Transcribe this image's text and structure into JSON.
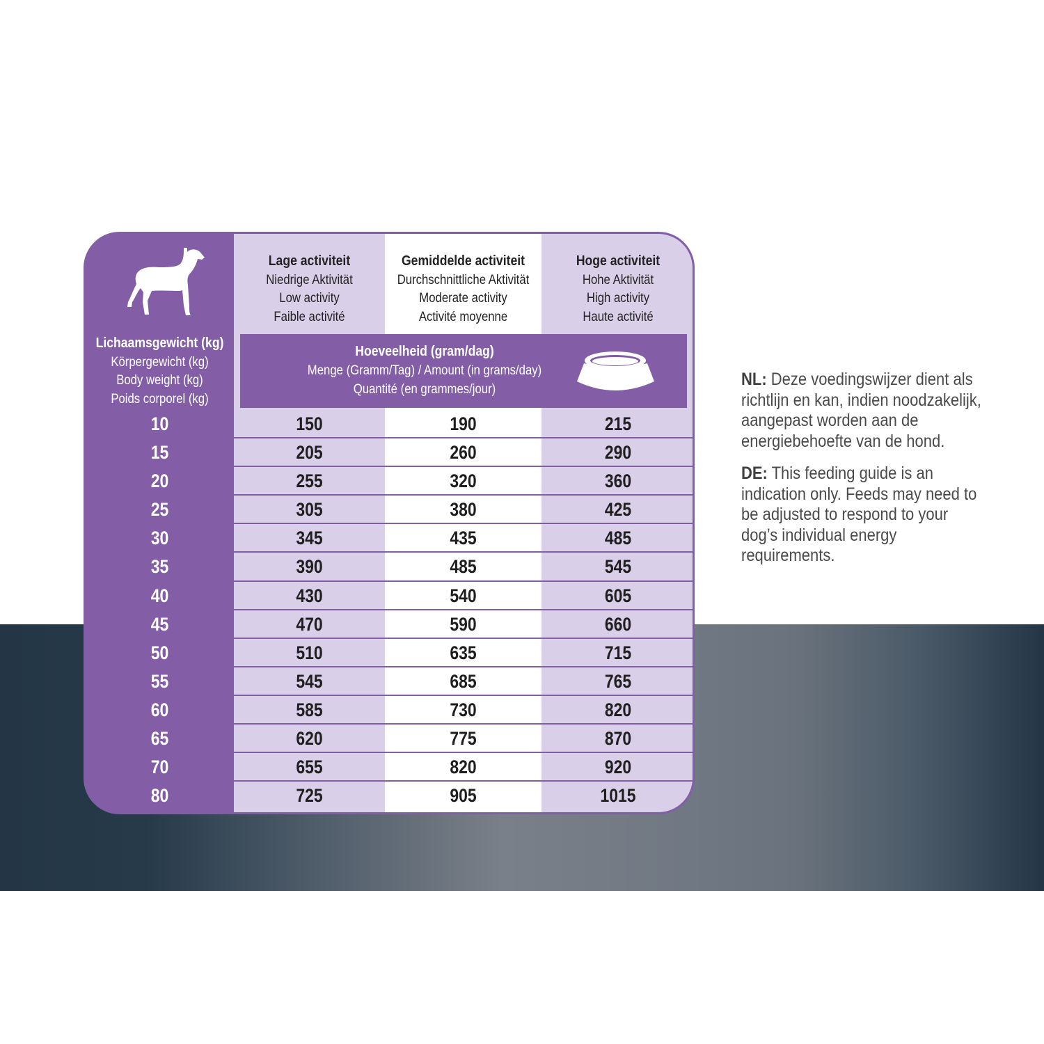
{
  "colors": {
    "purple": "#835ea7",
    "lavender": "#dacfe9",
    "band_dark": "#243646",
    "band_light": "#7a8089",
    "text": "#4a4a4a"
  },
  "icons": {
    "dog": "dog-silhouette-icon",
    "bowl": "food-bowl-icon"
  },
  "weight_header": {
    "nl": "Lichaamsgewicht (kg)",
    "de": "Körpergewicht (kg)",
    "en": "Body weight (kg)",
    "fr": "Poids corporel (kg)"
  },
  "columns": [
    {
      "nl": "Lage activiteit",
      "de": "Niedrige Aktivität",
      "en": "Low activity",
      "fr": "Faible activité"
    },
    {
      "nl": "Gemiddelde activiteit",
      "de": "Durchschnittliche Aktivität",
      "en": "Moderate activity",
      "fr": "Activité moyenne"
    },
    {
      "nl": "Hoge activiteit",
      "de": "Hohe Aktivität",
      "en": "High activity",
      "fr": "Haute activité"
    }
  ],
  "amount_header": {
    "nl": "Hoeveelheid (gram/dag)",
    "de_en": "Menge (Gramm/Tag) / Amount (in grams/day)",
    "fr": "Quantité (en grammes/jour)"
  },
  "rows": [
    {
      "weight": "10",
      "low": "150",
      "moderate": "190",
      "high": "215"
    },
    {
      "weight": "15",
      "low": "205",
      "moderate": "260",
      "high": "290"
    },
    {
      "weight": "20",
      "low": "255",
      "moderate": "320",
      "high": "360"
    },
    {
      "weight": "25",
      "low": "305",
      "moderate": "380",
      "high": "425"
    },
    {
      "weight": "30",
      "low": "345",
      "moderate": "435",
      "high": "485"
    },
    {
      "weight": "35",
      "low": "390",
      "moderate": "485",
      "high": "545"
    },
    {
      "weight": "40",
      "low": "430",
      "moderate": "540",
      "high": "605"
    },
    {
      "weight": "45",
      "low": "470",
      "moderate": "590",
      "high": "660"
    },
    {
      "weight": "50",
      "low": "510",
      "moderate": "635",
      "high": "715"
    },
    {
      "weight": "55",
      "low": "545",
      "moderate": "685",
      "high": "765"
    },
    {
      "weight": "60",
      "low": "585",
      "moderate": "730",
      "high": "820"
    },
    {
      "weight": "65",
      "low": "620",
      "moderate": "775",
      "high": "870"
    },
    {
      "weight": "70",
      "low": "655",
      "moderate": "820",
      "high": "920"
    },
    {
      "weight": "80",
      "low": "725",
      "moderate": "905",
      "high": "1015"
    }
  ],
  "notes": {
    "nl": {
      "label": "NL:",
      "lines": [
        " Deze voedingswijzer dient als",
        "richtlijn en kan, indien noodzakelijk,",
        "aangepast worden aan de",
        "energiebehoefte van de hond."
      ]
    },
    "de": {
      "label": "DE:",
      "lines": [
        " This feeding guide is an",
        "indication only. Feeds may need to",
        "be adjusted to respond to your",
        "dog’s individual energy",
        "requirements."
      ]
    }
  }
}
